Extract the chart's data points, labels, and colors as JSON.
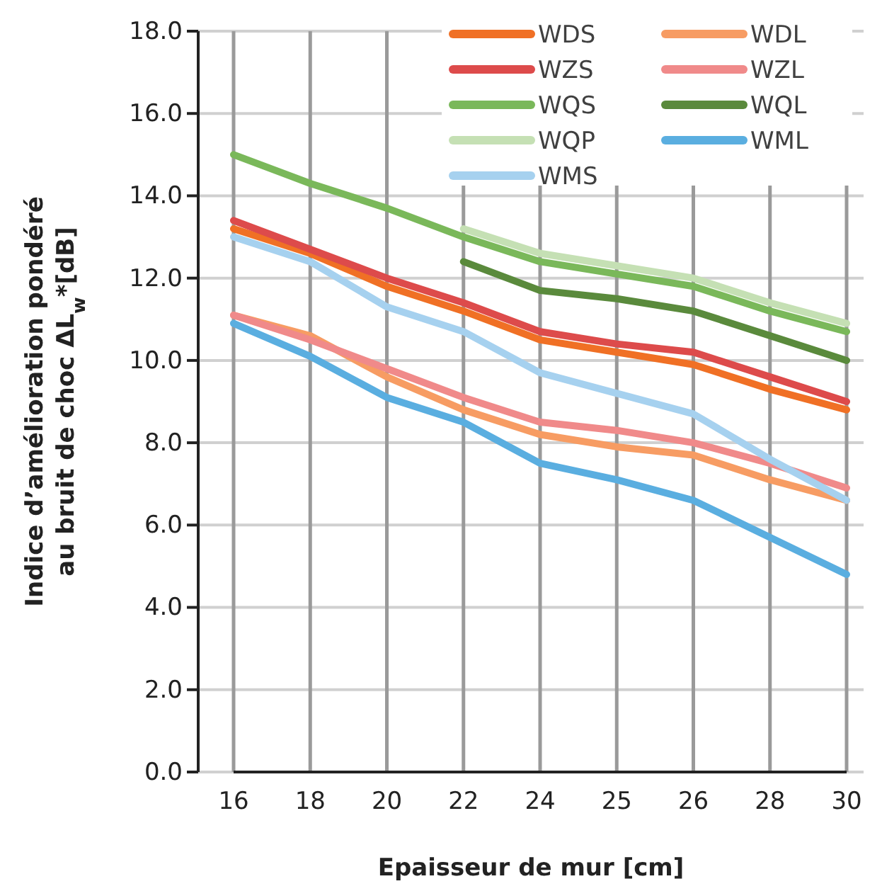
{
  "chart_data": {
    "type": "line",
    "xlabel": "Epaisseur de mur [cm]",
    "ylabel": "Indice d’amélioration pondéré\nau bruit de choc ΔL$_{w}$*[dB]",
    "categories": [
      "16",
      "18",
      "20",
      "22",
      "24",
      "25",
      "26",
      "28",
      "30"
    ],
    "ylim": [
      0,
      18
    ],
    "yticks": [
      {
        "value": 0,
        "label": "0.0"
      },
      {
        "value": 2,
        "label": "2.0"
      },
      {
        "value": 4,
        "label": "4.0"
      },
      {
        "value": 6,
        "label": "6.0"
      },
      {
        "value": 8,
        "label": "8.0"
      },
      {
        "value": 10,
        "label": "10.0"
      },
      {
        "value": 12,
        "label": "12.0"
      },
      {
        "value": 14,
        "label": "14.0"
      },
      {
        "value": 16,
        "label": "16.0"
      },
      {
        "value": 18,
        "label": "18.0"
      }
    ],
    "grid": true,
    "legend": "top right",
    "marker": "none",
    "line_style": "solid",
    "series": [
      {
        "name": "WDS",
        "color": "#f07025",
        "values": [
          13.2,
          12.6,
          11.8,
          11.2,
          10.5,
          10.2,
          9.9,
          9.3,
          8.8
        ]
      },
      {
        "name": "WDL",
        "color": "#f79c63",
        "values": [
          11.1,
          10.6,
          9.6,
          8.8,
          8.2,
          7.9,
          7.7,
          7.1,
          6.6
        ]
      },
      {
        "name": "WZS",
        "color": "#dd4b4b",
        "values": [
          13.4,
          12.7,
          12.0,
          11.4,
          10.7,
          10.4,
          10.2,
          9.6,
          9.0
        ]
      },
      {
        "name": "WZL",
        "color": "#f08a8a",
        "values": [
          11.1,
          10.5,
          9.8,
          9.1,
          8.5,
          8.3,
          8.0,
          7.5,
          6.9
        ]
      },
      {
        "name": "WQS",
        "color": "#7ab85a",
        "values": [
          15.0,
          14.3,
          13.7,
          13.0,
          12.4,
          12.1,
          11.8,
          11.2,
          10.7
        ]
      },
      {
        "name": "WQL",
        "color": "#5a8a3c",
        "values": [
          null,
          null,
          null,
          12.4,
          11.7,
          11.5,
          11.2,
          10.6,
          10.0
        ]
      },
      {
        "name": "WQP",
        "color": "#c5e0b4",
        "values": [
          null,
          null,
          null,
          13.2,
          12.6,
          12.3,
          12.0,
          11.4,
          10.9
        ]
      },
      {
        "name": "WML",
        "color": "#5aaee0",
        "values": [
          10.9,
          10.1,
          9.1,
          8.5,
          7.5,
          7.1,
          6.6,
          5.7,
          4.8
        ]
      },
      {
        "name": "WMS",
        "color": "#a6d1ef",
        "values": [
          13.0,
          12.4,
          11.3,
          10.7,
          9.7,
          9.2,
          8.7,
          7.6,
          6.6
        ]
      }
    ]
  }
}
